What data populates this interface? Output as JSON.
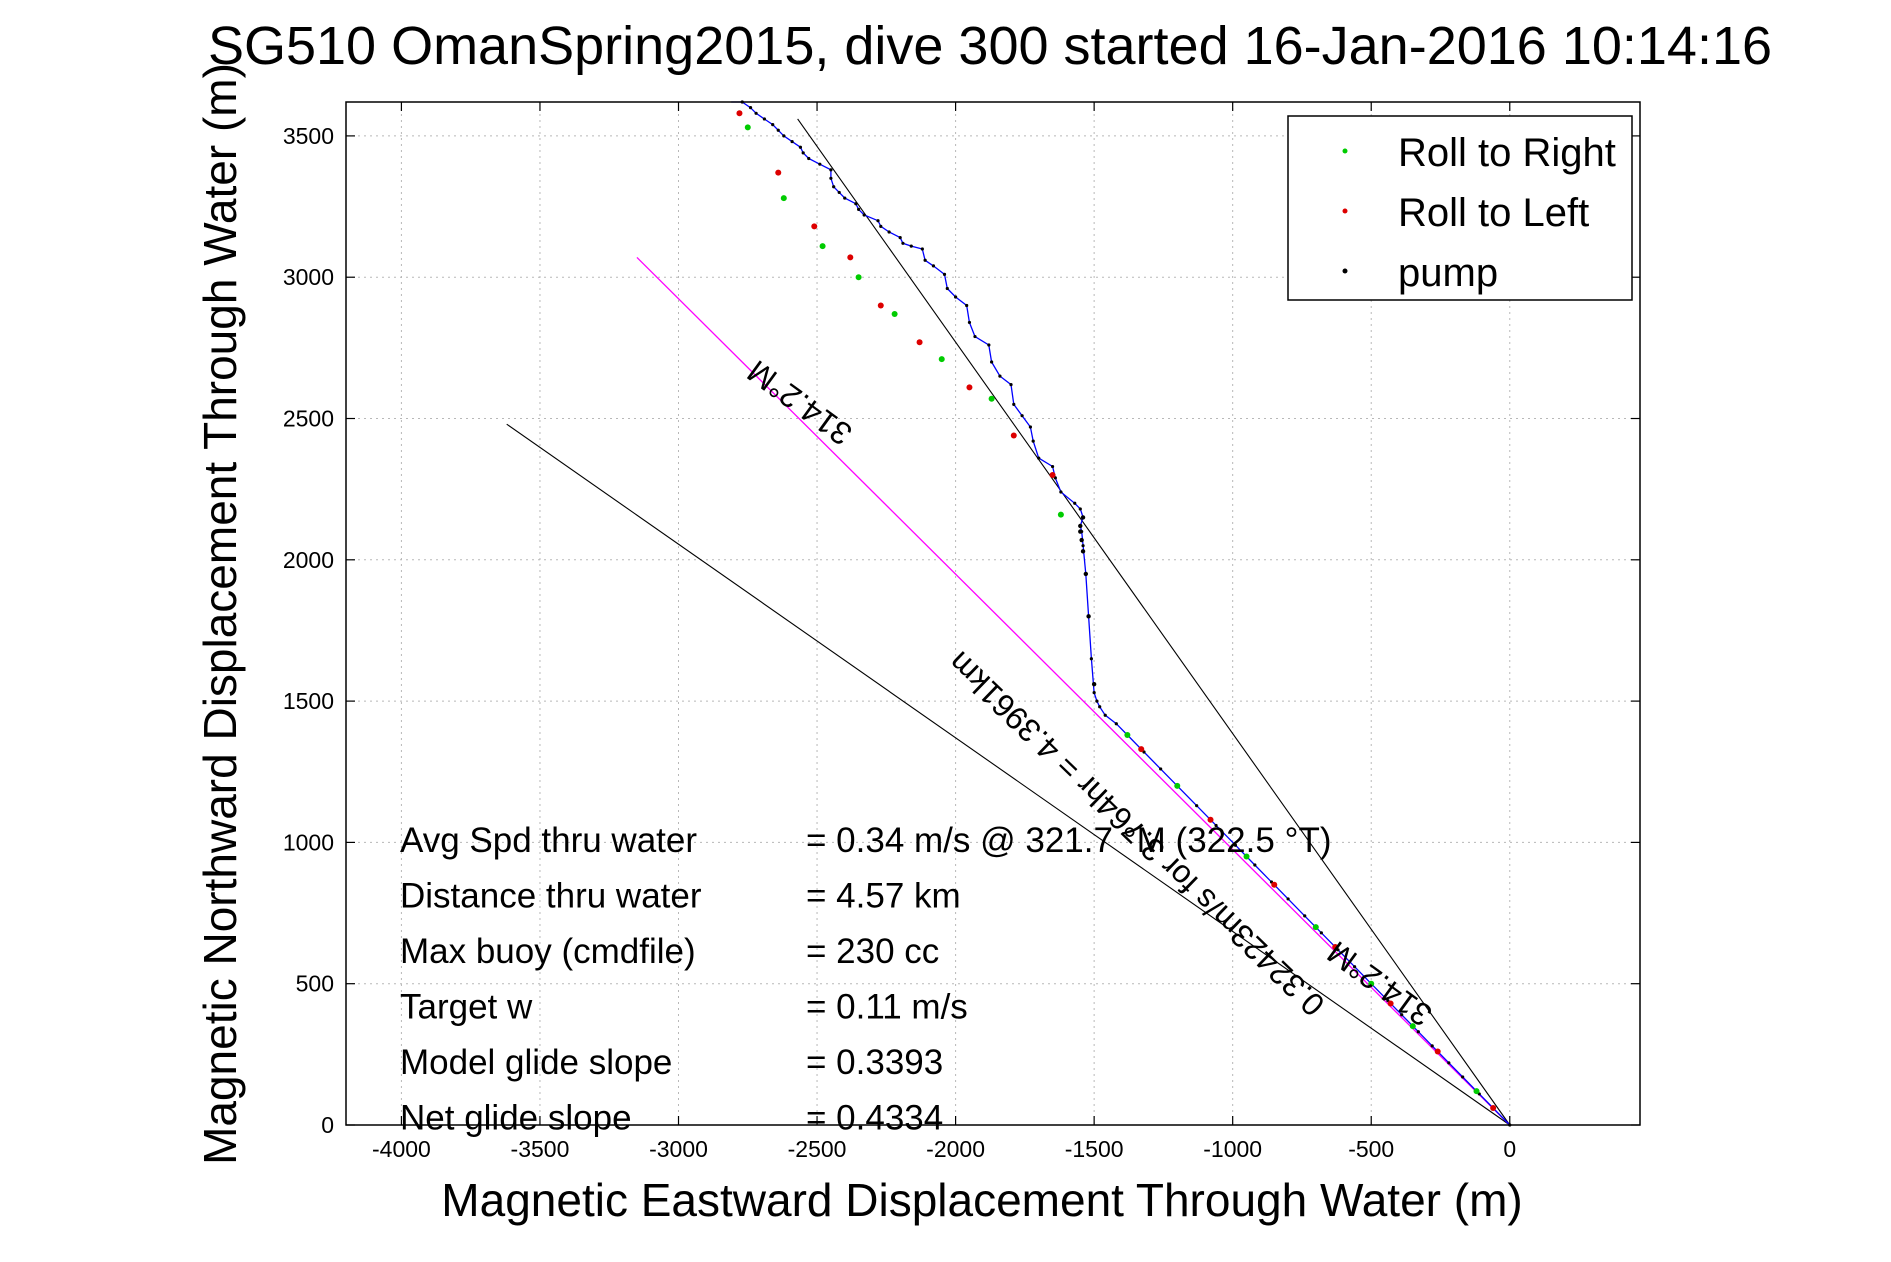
{
  "chart_data": {
    "type": "line",
    "title": "SG510 OmanSpring2015, dive 300 started 16-Jan-2016 10:14:16",
    "xlabel": "Magnetic Eastward Displacement Through Water (m)",
    "ylabel": "Magnetic Northward Displacement Through Water (m)",
    "xlim": [
      -4200,
      470
    ],
    "ylim": [
      0,
      3620
    ],
    "xticks": [
      -4000,
      -3500,
      -3000,
      -2500,
      -2000,
      -1500,
      -1000,
      -500,
      0
    ],
    "yticks": [
      0,
      500,
      1000,
      1500,
      2000,
      2500,
      3000,
      3500
    ],
    "grid": true,
    "legend_position": "top-right",
    "legend": [
      {
        "name": "Roll to Right",
        "color": "#00cc00"
      },
      {
        "name": "Roll to Left",
        "color": "#dd0000"
      },
      {
        "name": "pump",
        "color": "#000000"
      }
    ],
    "colors": {
      "track": "#0000ff",
      "current_vector": "#ff00ff",
      "reference_lines": "#000000"
    },
    "track": {
      "x": [
        0,
        -60,
        -110,
        -170,
        -220,
        -280,
        -330,
        -390,
        -440,
        -500,
        -560,
        -620,
        -680,
        -740,
        -800,
        -860,
        -920,
        -990,
        -1060,
        -1130,
        -1200,
        -1260,
        -1320,
        -1380,
        -1420,
        -1460,
        -1480,
        -1490,
        -1500,
        -1510,
        -1520,
        -1530,
        -1540,
        -1545,
        -1550,
        -1540,
        -1550,
        -1570,
        -1620,
        -1640,
        -1650,
        -1700,
        -1720,
        -1730,
        -1760,
        -1790,
        -1800,
        -1840,
        -1870,
        -1880,
        -1930,
        -1950,
        -1960,
        -2000,
        -2030,
        -2040,
        -2080,
        -2110,
        -2120,
        -2160,
        -2190,
        -2200,
        -2240,
        -2270,
        -2280,
        -2330,
        -2350,
        -2360,
        -2400,
        -2420,
        -2440,
        -2450,
        -2450,
        -2490,
        -2530,
        -2550,
        -2560,
        -2590,
        -2620,
        -2640,
        -2660,
        -2690,
        -2720,
        -2740,
        -2770,
        -2790,
        -2810
      ],
      "y": [
        0,
        60,
        110,
        170,
        220,
        280,
        330,
        390,
        440,
        500,
        560,
        620,
        680,
        740,
        800,
        860,
        920,
        990,
        1060,
        1130,
        1200,
        1260,
        1320,
        1380,
        1420,
        1450,
        1480,
        1500,
        1530,
        1650,
        1800,
        1950,
        2050,
        2100,
        2120,
        2150,
        2180,
        2200,
        2240,
        2290,
        2330,
        2360,
        2420,
        2470,
        2510,
        2550,
        2620,
        2650,
        2700,
        2760,
        2790,
        2840,
        2900,
        2930,
        2960,
        3010,
        3040,
        3060,
        3100,
        3110,
        3120,
        3140,
        3160,
        3180,
        3200,
        3220,
        3240,
        3260,
        3280,
        3300,
        3320,
        3350,
        3380,
        3400,
        3420,
        3440,
        3460,
        3480,
        3500,
        3520,
        3540,
        3560,
        3580,
        3600,
        3620,
        3640,
        3660
      ]
    },
    "roll_right": {
      "x": [
        -120,
        -350,
        -500,
        -700,
        -950,
        -1200,
        -1380,
        -1620,
        -1870,
        -2050,
        -2220,
        -2350,
        -2480,
        -2620,
        -2750
      ],
      "y": [
        120,
        350,
        500,
        700,
        950,
        1200,
        1380,
        2160,
        2570,
        2710,
        2870,
        3000,
        3110,
        3280,
        3530
      ]
    },
    "roll_left": {
      "x": [
        -60,
        -260,
        -430,
        -630,
        -850,
        -1080,
        -1330,
        -1650,
        -1790,
        -1950,
        -2130,
        -2270,
        -2380,
        -2510,
        -2640,
        -2780
      ],
      "y": [
        60,
        260,
        430,
        630,
        850,
        1080,
        1330,
        2300,
        2440,
        2610,
        2770,
        2900,
        3070,
        3180,
        3370,
        3580
      ]
    },
    "pump": {
      "x": [
        -1500,
        -1520,
        -1530,
        -1540,
        -1545,
        -1550,
        -1550,
        -1540
      ],
      "y": [
        1560,
        1800,
        1950,
        2030,
        2070,
        2100,
        2120,
        2150
      ]
    },
    "current_vector": {
      "x": [
        0,
        -3150
      ],
      "y": [
        0,
        3070
      ]
    },
    "reference_lines": [
      {
        "x": [
          0,
          -2570
        ],
        "y": [
          0,
          3560
        ]
      },
      {
        "x": [
          0,
          -3620
        ],
        "y": [
          0,
          2480
        ]
      }
    ],
    "annotations": {
      "heading_top": "314.2°M",
      "heading_bottom": "314.2°M",
      "current_label": "0.32423m/s for 3.764hr = 4.3961km"
    },
    "stats": [
      {
        "label": "Avg Spd thru water",
        "value": "=  0.34 m/s @ 321.7 °M (322.5 °T)"
      },
      {
        "label": "Distance thru water",
        "value": "=  4.57 km"
      },
      {
        "label": "Max buoy (cmdfile)",
        "value": "= 230 cc"
      },
      {
        "label": "Target w",
        "value": "= 0.11 m/s"
      },
      {
        "label": "Model glide slope",
        "value": "= 0.3393"
      },
      {
        "label": "Net glide slope",
        "value": "= 0.4334"
      }
    ]
  }
}
